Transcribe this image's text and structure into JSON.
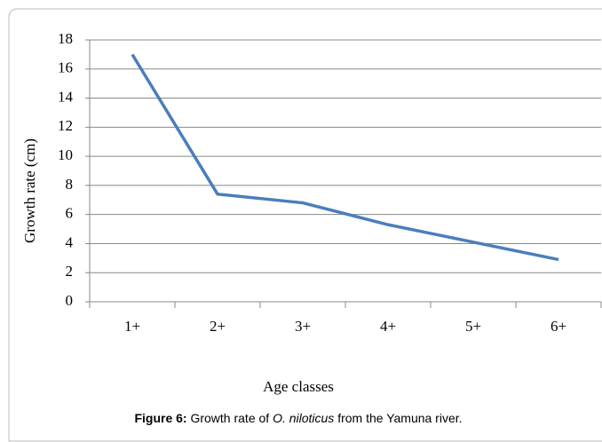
{
  "chart_data": {
    "type": "line",
    "categories": [
      "1+",
      "2+",
      "3+",
      "4+",
      "5+",
      "6+"
    ],
    "series": [
      {
        "name": "Growth rate",
        "color": "#4a7ebb",
        "values": [
          17,
          7.4,
          6.8,
          5.3,
          4.1,
          2.9
        ]
      }
    ],
    "ylim": [
      0,
      18
    ],
    "yticks": [
      0,
      2,
      4,
      6,
      8,
      10,
      12,
      14,
      16,
      18
    ],
    "grid": true,
    "ylabel": "Growth rate (cm)",
    "xlabel": "Age classes",
    "caption": {
      "label": "Figure 6:",
      "before": " Growth rate of ",
      "species": "O. niloticus",
      "after": " from the Yamuna river."
    }
  }
}
